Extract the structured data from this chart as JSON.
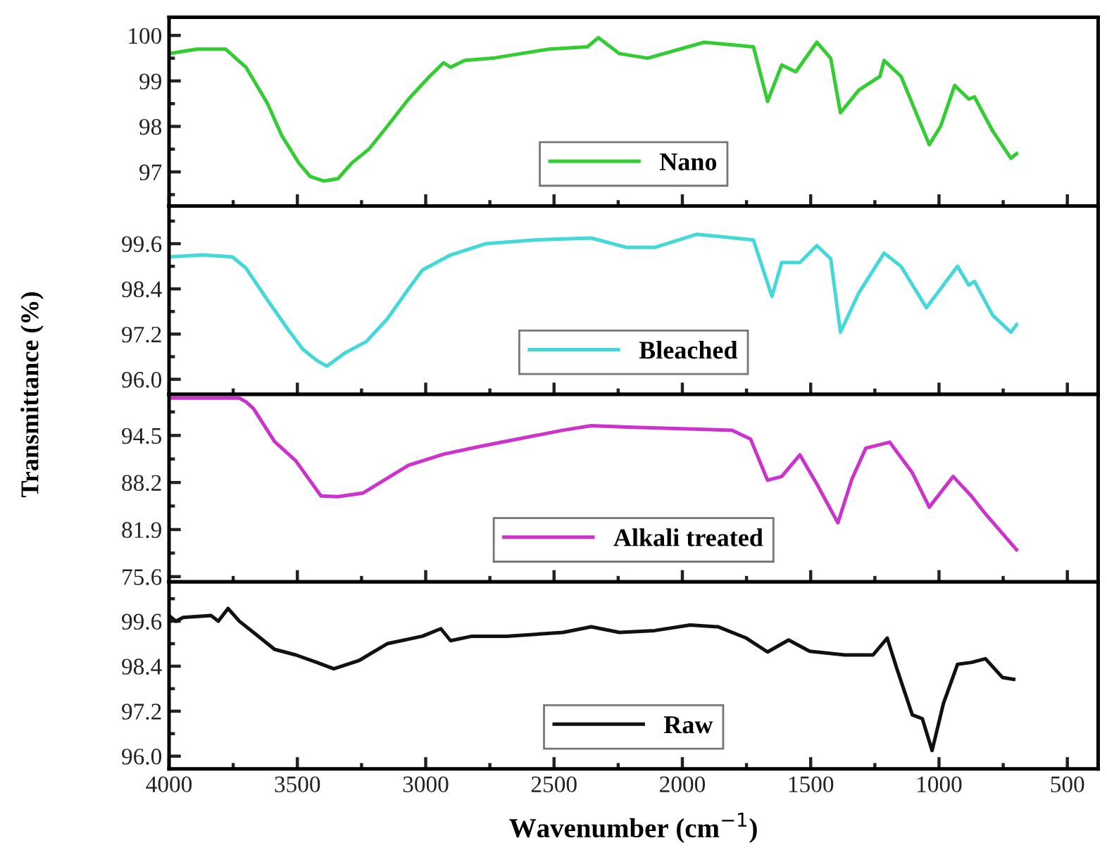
{
  "chart_data": [
    {
      "type": "line",
      "xlim": [
        4000,
        380
      ],
      "xticks": [
        4000,
        3500,
        3000,
        2500,
        2000,
        1500,
        1000,
        500
      ],
      "ylim": [
        96.25,
        100.4
      ],
      "yticks": [
        97,
        98,
        99,
        100
      ],
      "tick_labels": "y",
      "legend": "bottom",
      "grid": false,
      "series": [
        {
          "name": "Nano",
          "color": "#33cc33",
          "x": [
            4000,
            3890,
            3780,
            3700,
            3616,
            3561,
            3495,
            3450,
            3396,
            3342,
            3287,
            3221,
            3150,
            3067,
            2985,
            2930,
            2903,
            2848,
            2738,
            2629,
            2519,
            2370,
            2327,
            2245,
            2135,
            1915,
            1723,
            1668,
            1613,
            1558,
            1476,
            1422,
            1384,
            1312,
            1230,
            1214,
            1148,
            1038,
            994,
            939,
            884,
            862,
            791,
            720,
            698
          ],
          "values": [
            99.6,
            99.7,
            99.7,
            99.3,
            98.5,
            97.8,
            97.2,
            96.9,
            96.8,
            96.85,
            97.2,
            97.5,
            98.0,
            98.6,
            99.1,
            99.4,
            99.3,
            99.45,
            99.5,
            99.6,
            99.7,
            99.75,
            99.95,
            99.6,
            99.5,
            99.85,
            99.75,
            98.55,
            99.35,
            99.2,
            99.85,
            99.5,
            98.3,
            98.8,
            99.1,
            99.45,
            99.1,
            97.6,
            98.0,
            98.9,
            98.6,
            98.65,
            97.9,
            97.3,
            97.4
          ]
        }
      ]
    },
    {
      "type": "line",
      "xlim": [
        4000,
        380
      ],
      "xticks": [
        4000,
        3500,
        3000,
        2500,
        2000,
        1500,
        1000,
        500
      ],
      "ylim": [
        95.6,
        100.6
      ],
      "yticks": [
        {
          "value": 96.0,
          "label": "96.0"
        },
        97.2,
        98.4,
        99.6
      ],
      "tick_labels": "y",
      "legend": "bottom",
      "grid": false,
      "ylabel": "Transmittance (%)",
      "series": [
        {
          "name": "Bleached",
          "color": "#44d8d8",
          "x": [
            4000,
            3870,
            3753,
            3700,
            3616,
            3534,
            3479,
            3424,
            3385,
            3314,
            3232,
            3150,
            3067,
            3013,
            2903,
            2766,
            2574,
            2355,
            2217,
            2108,
            1943,
            1723,
            1651,
            1613,
            1542,
            1476,
            1422,
            1384,
            1312,
            1214,
            1148,
            1049,
            928,
            884,
            862,
            791,
            720,
            698
          ],
          "values": [
            99.25,
            99.3,
            99.25,
            98.95,
            98.1,
            97.3,
            96.8,
            96.5,
            96.35,
            96.7,
            97.0,
            97.6,
            98.4,
            98.9,
            99.3,
            99.6,
            99.7,
            99.75,
            99.5,
            99.5,
            99.85,
            99.7,
            98.2,
            99.1,
            99.1,
            99.55,
            99.2,
            97.25,
            98.3,
            99.35,
            99.0,
            97.9,
            99.0,
            98.5,
            98.6,
            97.7,
            97.25,
            97.45
          ]
        }
      ]
    },
    {
      "type": "line",
      "xlim": [
        4000,
        380
      ],
      "xticks": [
        4000,
        3500,
        3000,
        2500,
        2000,
        1500,
        1000,
        500
      ],
      "ylim": [
        74.9,
        100.0
      ],
      "yticks": [
        75.6,
        81.9,
        88.2,
        94.5
      ],
      "tick_labels": "y",
      "legend": "bottom",
      "grid": false,
      "series": [
        {
          "name": "Alkali treated",
          "color": "#cc33cc",
          "x": [
            4000,
            3850,
            3726,
            3700,
            3671,
            3589,
            3506,
            3408,
            3342,
            3243,
            3067,
            2930,
            2793,
            2629,
            2465,
            2355,
            2190,
            1806,
            1734,
            1668,
            1613,
            1542,
            1476,
            1394,
            1340,
            1285,
            1192,
            1104,
            1038,
            945,
            874,
            819,
            698
          ],
          "values": [
            99.5,
            99.5,
            99.5,
            99.0,
            98.1,
            93.7,
            91.1,
            86.4,
            86.3,
            86.8,
            90.5,
            92.0,
            93.0,
            94.1,
            95.2,
            95.8,
            95.6,
            95.2,
            94.0,
            88.5,
            89.0,
            91.9,
            88.0,
            82.8,
            88.6,
            92.8,
            93.6,
            89.5,
            84.9,
            89.0,
            86.4,
            84.0,
            79.2
          ]
        }
      ]
    },
    {
      "type": "line",
      "xlim": [
        4000,
        380
      ],
      "xticks": [
        4000,
        3500,
        3000,
        2500,
        2000,
        1500,
        1000,
        500
      ],
      "ylim": [
        95.66,
        100.65
      ],
      "yticks": [
        {
          "value": 96.0,
          "label": "96.0"
        },
        97.2,
        98.4,
        99.6
      ],
      "legend": "bottom",
      "grid": false,
      "xlabel": "Wavenumber (cm$^{−1}$)",
      "series": [
        {
          "name": "Raw",
          "color": "#111111",
          "x": [
            4000,
            3973,
            3945,
            3836,
            3808,
            3770,
            3726,
            3671,
            3589,
            3506,
            3424,
            3358,
            3260,
            3150,
            3013,
            2941,
            2903,
            2820,
            2684,
            2465,
            2355,
            2245,
            2108,
            1970,
            1860,
            1751,
            1668,
            1586,
            1504,
            1367,
            1257,
            1202,
            1164,
            1104,
            1065,
            1027,
            983,
            928,
            874,
            819,
            753,
            709
          ],
          "values": [
            99.75,
            99.6,
            99.7,
            99.75,
            99.6,
            99.94,
            99.6,
            99.3,
            98.85,
            98.7,
            98.5,
            98.33,
            98.55,
            99.0,
            99.2,
            99.4,
            99.08,
            99.2,
            99.2,
            99.3,
            99.45,
            99.3,
            99.35,
            99.5,
            99.45,
            99.15,
            98.78,
            99.1,
            98.8,
            98.7,
            98.7,
            99.15,
            98.33,
            97.1,
            97.0,
            96.15,
            97.4,
            98.45,
            98.5,
            98.6,
            98.1,
            98.05
          ]
        }
      ]
    }
  ]
}
